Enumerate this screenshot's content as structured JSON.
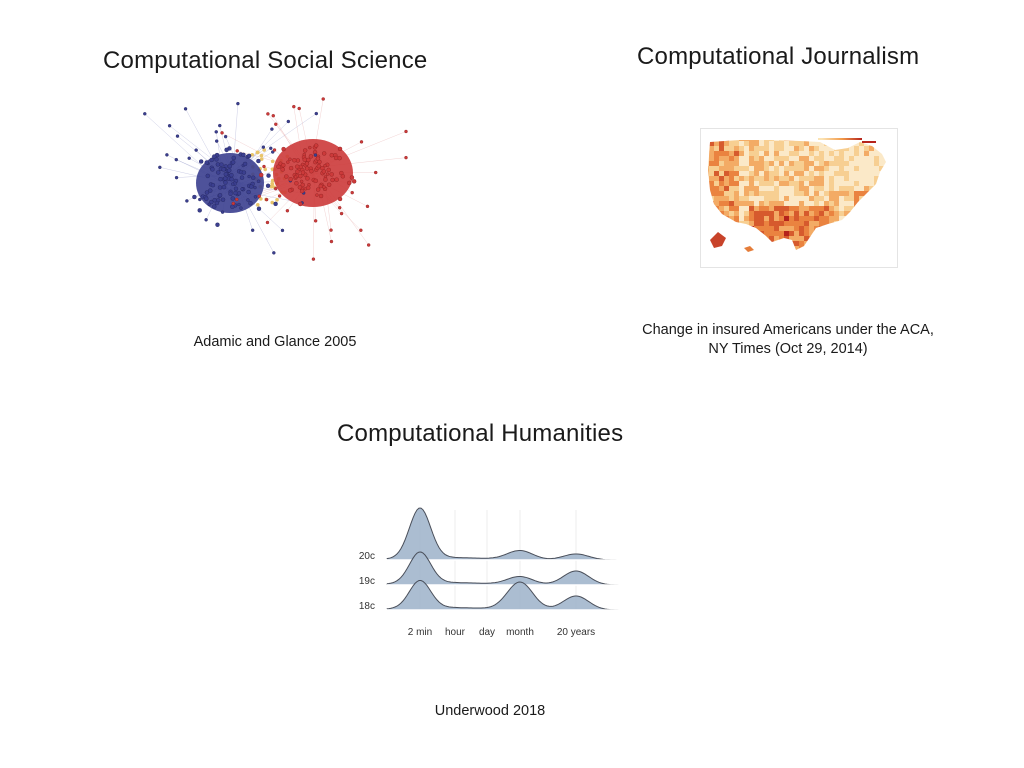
{
  "slide": {
    "panels": {
      "social": {
        "title": "Computational Social Science",
        "caption": "Adamic and Glance 2005",
        "image": "political-blog-network-graph",
        "colors": {
          "left_cluster": "#3b3f8f",
          "right_cluster": "#cc3a3a",
          "bridge": "#e8c46a"
        }
      },
      "journalism": {
        "title": "Computational Journalism",
        "caption_line1": "Change in insured Americans under the ACA,",
        "caption_line2": "NY Times  (Oct 29, 2014)",
        "image": "us-county-choropleth-map",
        "colors": {
          "low": "#fbe3b4",
          "mid": "#f29b4b",
          "high": "#b5231c"
        }
      },
      "humanities": {
        "title": "Computational Humanities",
        "caption": "Underwood 2018",
        "image": "ridgeline-density-plot"
      }
    }
  },
  "chart_data": {
    "type": "area",
    "title": "",
    "xlabel": "",
    "ylabel": "",
    "x_scale": "log",
    "x_ticks": [
      "2 min",
      "hour",
      "day",
      "month",
      "20 years"
    ],
    "series": [
      {
        "name": "20c",
        "peaks": [
          {
            "x": "2 min",
            "height": 1.0
          },
          {
            "x": "month",
            "height": 0.18
          },
          {
            "x": "20 years",
            "height": 0.12
          }
        ]
      },
      {
        "name": "19c",
        "peaks": [
          {
            "x": "2 min",
            "height": 0.62
          },
          {
            "x": "month",
            "height": 0.16
          },
          {
            "x": "20 years",
            "height": 0.28
          }
        ]
      },
      {
        "name": "18c",
        "peaks": [
          {
            "x": "2 min",
            "height": 0.55
          },
          {
            "x": "month",
            "height": 0.55
          },
          {
            "x": "20 years",
            "height": 0.28
          }
        ]
      }
    ],
    "colors": {
      "fill": "#a7b9cf",
      "stroke": "#4a4f5a"
    }
  }
}
